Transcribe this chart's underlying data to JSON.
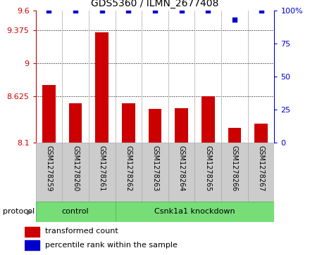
{
  "title": "GDS5360 / ILMN_2677408",
  "samples": [
    "GSM1278259",
    "GSM1278260",
    "GSM1278261",
    "GSM1278262",
    "GSM1278263",
    "GSM1278264",
    "GSM1278265",
    "GSM1278266",
    "GSM1278267"
  ],
  "bar_values": [
    8.75,
    8.55,
    9.35,
    8.55,
    8.48,
    8.49,
    8.63,
    8.27,
    8.32
  ],
  "dot_values": [
    100,
    100,
    100,
    100,
    100,
    100,
    100,
    93,
    100
  ],
  "ylim_left": [
    8.1,
    9.6
  ],
  "ylim_right": [
    0,
    100
  ],
  "yticks_left": [
    8.1,
    8.625,
    9.0,
    9.375,
    9.6
  ],
  "ytick_labels_left": [
    "8.1",
    "8.625",
    "9",
    "9.375",
    "9.6"
  ],
  "yticks_right": [
    0,
    25,
    50,
    75,
    100
  ],
  "ytick_labels_right": [
    "0",
    "25",
    "50",
    "75",
    "100%"
  ],
  "bar_color": "#cc0000",
  "dot_color": "#0000cc",
  "control_count": 3,
  "knockdown_count": 6,
  "control_label": "control",
  "knockdown_label": "Csnk1a1 knockdown",
  "group_color": "#77dd77",
  "protocol_label": "protocol",
  "legend_bar_label": "transformed count",
  "legend_dot_label": "percentile rank within the sample",
  "bar_width": 0.5,
  "label_bg_color": "#cccccc",
  "label_border_color": "#aaaaaa",
  "plot_bg_color": "#ffffff"
}
